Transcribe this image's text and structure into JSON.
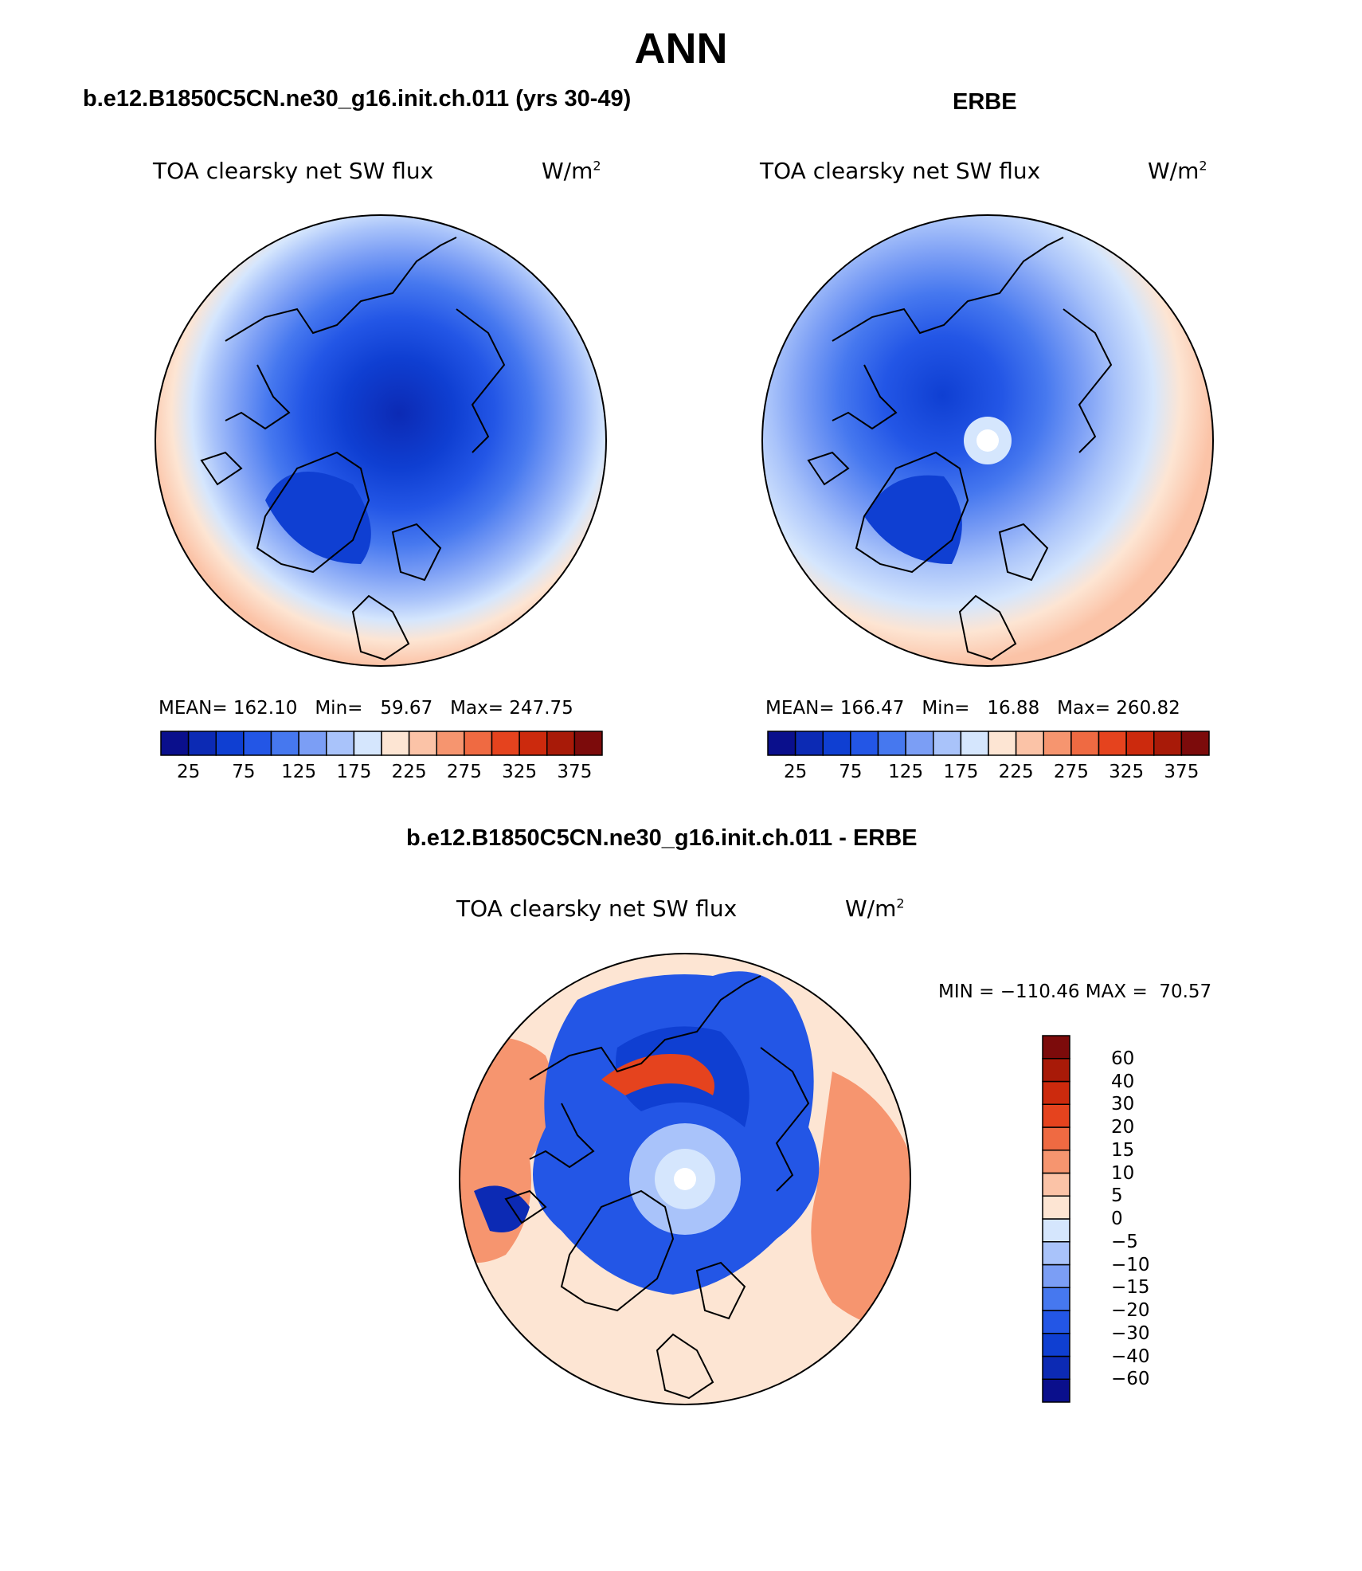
{
  "figure": {
    "title": "ANN",
    "panels": [
      {
        "id": "model",
        "header": "b.e12.B1850C5CN.ne30_g16.init.ch.011 (yrs 30-49)",
        "variable": "TOA clearsky net SW flux",
        "units_base": "W/m",
        "units_exp": "2",
        "stats": {
          "mean_label": "MEAN=",
          "mean": "162.10",
          "min_label": "Min=",
          "min": "59.67",
          "max_label": "Max=",
          "max": "247.75"
        }
      },
      {
        "id": "obs",
        "header": "ERBE",
        "variable": "TOA clearsky net SW flux",
        "units_base": "W/m",
        "units_exp": "2",
        "stats": {
          "mean_label": "MEAN=",
          "mean": "166.47",
          "min_label": "Min=",
          "min": "16.88",
          "max_label": "Max=",
          "max": "260.82"
        }
      },
      {
        "id": "diff",
        "header": "b.e12.B1850C5CN.ne30_g16.init.ch.011 - ERBE",
        "variable": "TOA clearsky net SW flux",
        "units_base": "W/m",
        "units_exp": "2",
        "stats": {
          "min_label": "MIN =",
          "min": "−110.46",
          "max_label": "MAX =",
          "max": "70.57"
        }
      }
    ],
    "colorbar_abs": {
      "colors": [
        "#0a0f8c",
        "#0c2ab4",
        "#0f3fd2",
        "#2356e6",
        "#4678ef",
        "#7b9ef5",
        "#a9c3fa",
        "#d5e6fd",
        "#fde5d3",
        "#fbc3a7",
        "#f6956f",
        "#ef6a42",
        "#e5431e",
        "#cc2a0d",
        "#a81a08",
        "#7c0b0b"
      ],
      "tick_labels": [
        "25",
        "75",
        "125",
        "175",
        "225",
        "275",
        "325",
        "375"
      ]
    },
    "colorbar_diff": {
      "colors": [
        "#0a0f8c",
        "#0c2ab4",
        "#0f3fd2",
        "#2356e6",
        "#4678ef",
        "#7b9ef5",
        "#a9c3fa",
        "#d5e6fd",
        "#fde5d3",
        "#fbc3a7",
        "#f6956f",
        "#ef6a42",
        "#e5431e",
        "#cc2a0d",
        "#a81a08",
        "#7c0b0b"
      ],
      "tick_labels": [
        "60",
        "40",
        "30",
        "20",
        "15",
        "10",
        "5",
        "0",
        "−5",
        "−10",
        "−15",
        "−20",
        "−30",
        "−40",
        "−60"
      ]
    }
  }
}
